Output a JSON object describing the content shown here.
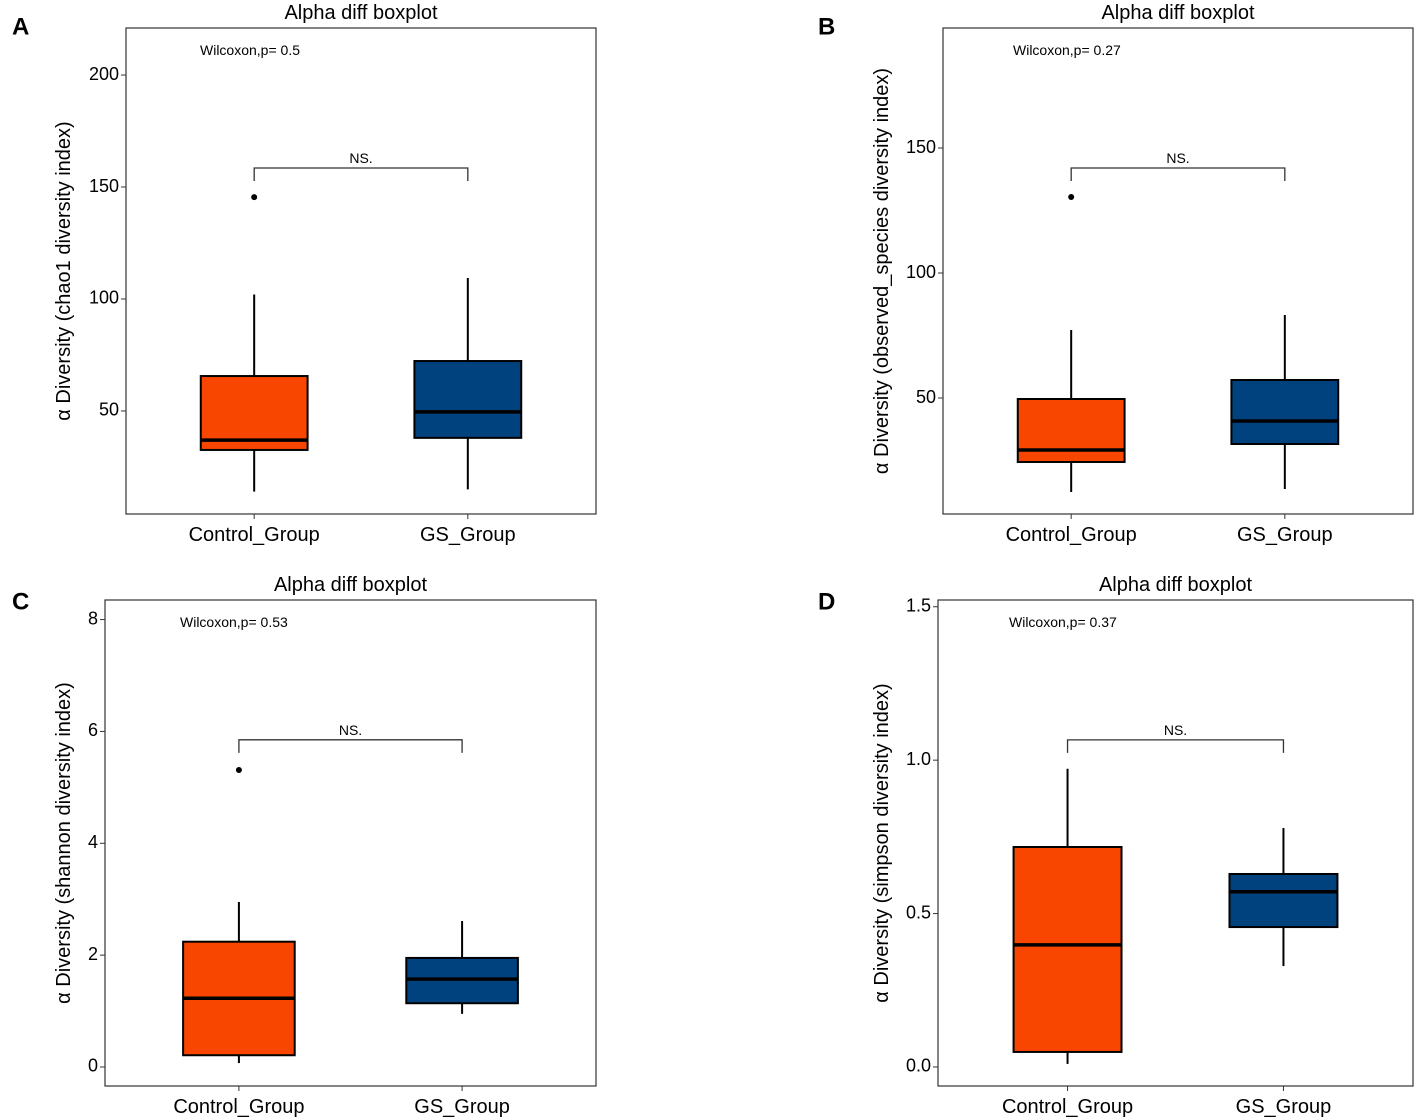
{
  "colors": {
    "control": "#F84600",
    "gs": "#00427E"
  },
  "chart_data": [
    {
      "type": "box",
      "panel_label": "A",
      "title": "Alpha diff boxplot",
      "xlabel": "",
      "ylabel": "α Diversity (chao1 diversity index)",
      "categories": [
        "Control_Group",
        "GS_Group"
      ],
      "ylim": [
        4,
        221
      ],
      "yticks": [
        50,
        100,
        150,
        200
      ],
      "ytick_labels": [
        "50",
        "100",
        "150",
        "200"
      ],
      "series": [
        {
          "name": "Control_Group",
          "whisker_low": 14,
          "q1": 32.6,
          "median": 37,
          "q3": 65.6,
          "whisker_high": 102,
          "outliers": [
            145.5
          ]
        },
        {
          "name": "GS_Group",
          "whisker_low": 15,
          "q1": 38,
          "median": 49.6,
          "q3": 72.3,
          "whisker_high": 109.4,
          "outliers": []
        }
      ],
      "annotation": "Wilcoxon,p= 0.5",
      "significance": {
        "label": "NS.",
        "y": 158.5
      }
    },
    {
      "type": "box",
      "panel_label": "B",
      "title": "Alpha diff boxplot",
      "xlabel": "",
      "ylabel": "α Diversity (observed_species diversity index)",
      "categories": [
        "Control_Group",
        "GS_Group"
      ],
      "ylim": [
        3.6,
        198
      ],
      "yticks": [
        50,
        100,
        150
      ],
      "ytick_labels": [
        "50",
        "100",
        "150"
      ],
      "series": [
        {
          "name": "Control_Group",
          "whisker_low": 12.4,
          "q1": 24.4,
          "median": 29.2,
          "q3": 49.6,
          "whisker_high": 77.2,
          "outliers": [
            130.4
          ]
        },
        {
          "name": "GS_Group",
          "whisker_low": 13.6,
          "q1": 31.6,
          "median": 40.8,
          "q3": 57.2,
          "whisker_high": 83.2,
          "outliers": []
        }
      ],
      "annotation": "Wilcoxon,p= 0.27",
      "significance": {
        "label": "NS.",
        "y": 142
      }
    },
    {
      "type": "box",
      "panel_label": "C",
      "title": "Alpha diff boxplot",
      "xlabel": "",
      "ylabel": "α Diversity (shannon diversity index)",
      "categories": [
        "Control_Group",
        "GS_Group"
      ],
      "ylim": [
        -0.34,
        8.35
      ],
      "yticks": [
        0,
        2,
        4,
        6,
        8
      ],
      "ytick_labels": [
        "0",
        "2",
        "4",
        "6",
        "8"
      ],
      "series": [
        {
          "name": "Control_Group",
          "whisker_low": 0.07,
          "q1": 0.21,
          "median": 1.23,
          "q3": 2.24,
          "whisker_high": 2.95,
          "outliers": [
            5.31
          ]
        },
        {
          "name": "GS_Group",
          "whisker_low": 0.95,
          "q1": 1.14,
          "median": 1.57,
          "q3": 1.95,
          "whisker_high": 2.61,
          "outliers": []
        }
      ],
      "annotation": "Wilcoxon,p= 0.53",
      "significance": {
        "label": "NS.",
        "y": 5.85
      }
    },
    {
      "type": "box",
      "panel_label": "D",
      "title": "Alpha diff boxplot",
      "xlabel": "",
      "ylabel": "α Diversity (simpson diversity index)",
      "categories": [
        "Control_Group",
        "GS_Group"
      ],
      "ylim": [
        -0.062,
        1.522
      ],
      "yticks": [
        0,
        0.5,
        1,
        1.5
      ],
      "ytick_labels": [
        "0.0",
        "0.5",
        "1.0",
        "1.5"
      ],
      "series": [
        {
          "name": "Control_Group",
          "whisker_low": 0.01,
          "q1": 0.049,
          "median": 0.398,
          "q3": 0.717,
          "whisker_high": 0.972,
          "outliers": []
        },
        {
          "name": "GS_Group",
          "whisker_low": 0.329,
          "q1": 0.456,
          "median": 0.571,
          "q3": 0.629,
          "whisker_high": 0.779,
          "outliers": []
        }
      ],
      "annotation": "Wilcoxon,p= 0.37",
      "significance": {
        "label": "NS.",
        "y": 1.066
      }
    }
  ]
}
